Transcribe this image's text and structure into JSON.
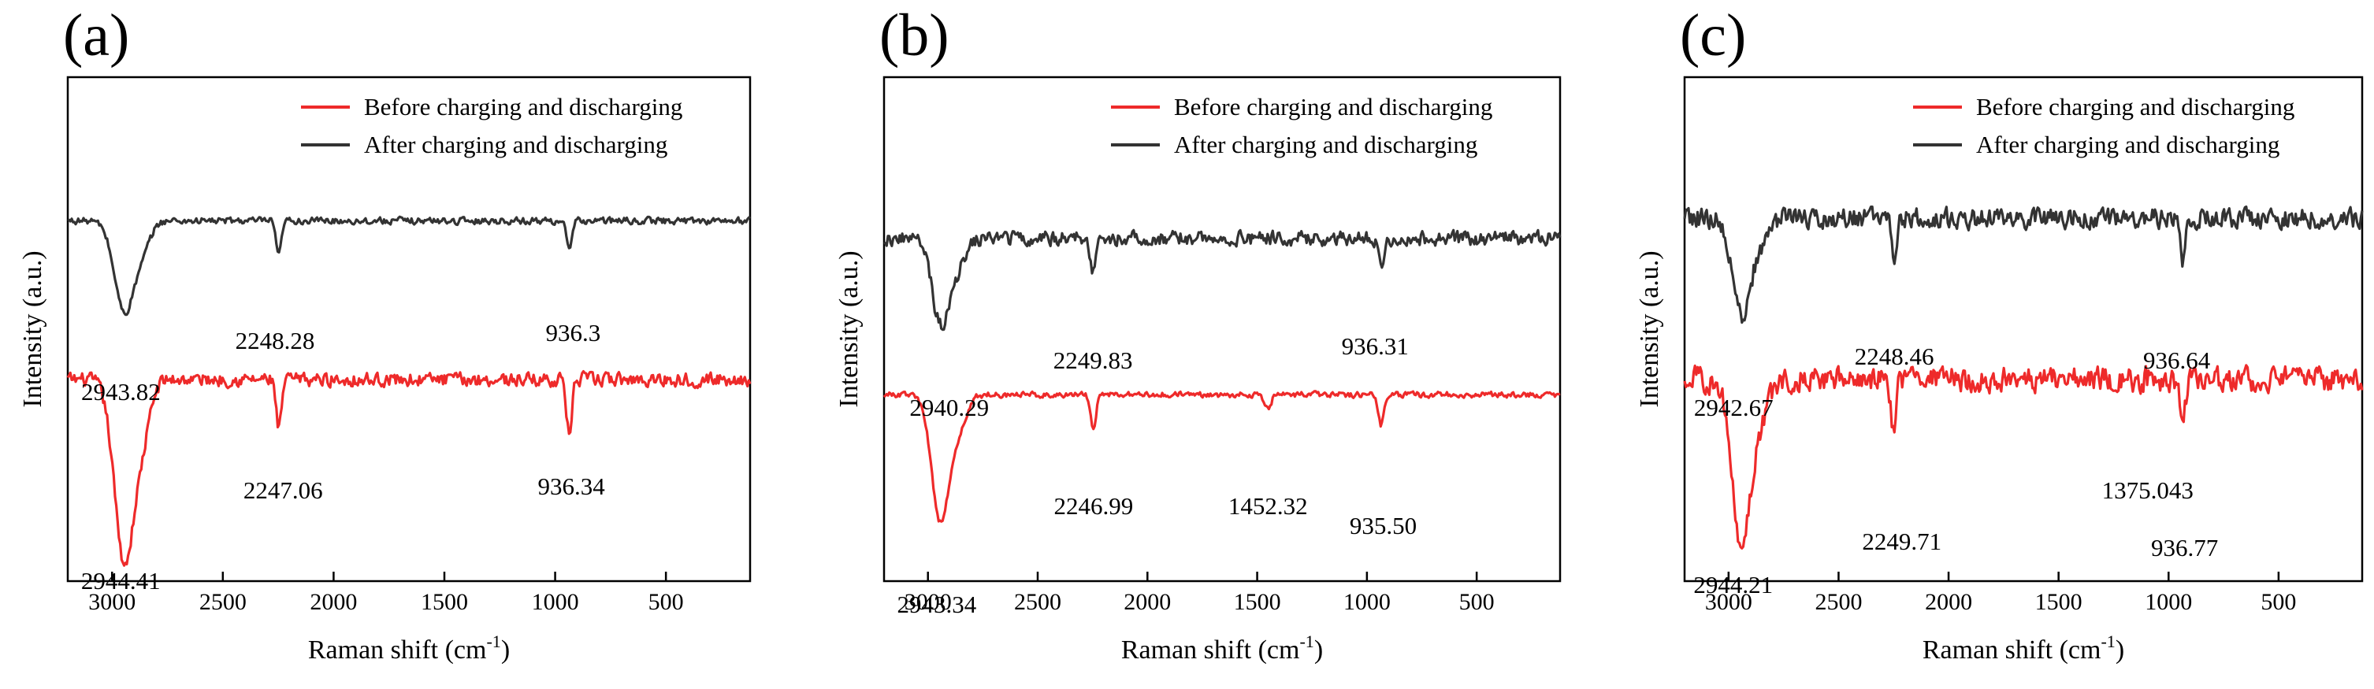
{
  "chart_data": [
    {
      "type": "line",
      "panel_label": "(a)",
      "xlabel": "Raman shift (cm",
      "xlabel_sup": "-1",
      "xlabel_end": ")",
      "ylabel": "Intensity (a.u.)",
      "xlim": [
        3200,
        120
      ],
      "x_ticks": [
        3000,
        2500,
        2000,
        1500,
        1000,
        500
      ],
      "y_ticks_shown": false,
      "legend_position": "top-right",
      "series": [
        {
          "name": "Before charging and discharging",
          "color": "#ee2a2a",
          "offset": 0.0,
          "baseline": 0.4,
          "peaks": [
            [
              2944.41,
              0.36,
              45
            ],
            [
              2247.06,
              0.1,
              12
            ],
            [
              936.34,
              0.11,
              12
            ]
          ],
          "noise": 0.012,
          "annotations": [
            {
              "text": "2944.41",
              "x": 2944.41
            },
            {
              "text": "2247.06",
              "x": 2247.06
            },
            {
              "text": "936.34",
              "x": 936.34
            }
          ]
        },
        {
          "name": "After charging and discharging",
          "color": "#333333",
          "offset": 0.0,
          "baseline": 0.715,
          "peaks": [
            [
              2943.82,
              0.18,
              45
            ],
            [
              2248.28,
              0.07,
              12
            ],
            [
              936.3,
              0.06,
              12
            ]
          ],
          "noise": 0.006,
          "annotations": [
            {
              "text": "2943.82",
              "x": 2943.82
            },
            {
              "text": "2248.28",
              "x": 2248.28
            },
            {
              "text": "936.3",
              "x": 936.3
            }
          ]
        }
      ]
    },
    {
      "type": "line",
      "panel_label": "(b)",
      "xlabel": "Raman shift (cm",
      "xlabel_sup": "-1",
      "xlabel_end": ")",
      "ylabel": "Intensity (a.u.)",
      "xlim": [
        3200,
        120
      ],
      "x_ticks": [
        3000,
        2500,
        2000,
        1500,
        1000,
        500
      ],
      "y_ticks_shown": false,
      "legend_position": "top-right",
      "series": [
        {
          "name": "Before charging and discharging",
          "color": "#ee2a2a",
          "offset": 0.0,
          "baseline": 0.37,
          "peaks": [
            [
              2943.34,
              0.25,
              40
            ],
            [
              2246.99,
              0.07,
              12
            ],
            [
              1452.32,
              0.03,
              15
            ],
            [
              935.5,
              0.06,
              12
            ]
          ],
          "noise": 0.005,
          "annotations": [
            {
              "text": "2943.34",
              "x": 2943.34
            },
            {
              "text": "2246.99",
              "x": 2246.99
            },
            {
              "text": "1452.32",
              "x": 1452.32
            },
            {
              "text": "935.50",
              "x": 935.5
            }
          ]
        },
        {
          "name": "After charging and discharging",
          "color": "#333333",
          "offset": 0.0,
          "baseline": 0.68,
          "peaks": [
            [
              2940.29,
              0.17,
              40
            ],
            [
              2249.83,
              0.06,
              12
            ],
            [
              936.31,
              0.05,
              12
            ]
          ],
          "noise": 0.013,
          "annotations": [
            {
              "text": "2940.29",
              "x": 2940.29
            },
            {
              "text": "2249.83",
              "x": 2249.83
            },
            {
              "text": "936.31",
              "x": 936.31
            }
          ]
        }
      ]
    },
    {
      "type": "line",
      "panel_label": "(c)",
      "xlabel": "Raman shift (cm",
      "xlabel_sup": "-1",
      "xlabel_end": ")",
      "ylabel": "Intensity (a.u.)",
      "xlim": [
        3200,
        120
      ],
      "x_ticks": [
        3000,
        2500,
        2000,
        1500,
        1000,
        500
      ],
      "y_ticks_shown": false,
      "legend_position": "top-right",
      "series": [
        {
          "name": "Before charging and discharging",
          "color": "#ee2a2a",
          "offset": 0.0,
          "baseline": 0.4,
          "peaks": [
            [
              2944.21,
              0.33,
              40
            ],
            [
              2249.71,
              0.1,
              12
            ],
            [
              936.77,
              0.09,
              12
            ]
          ],
          "noise": 0.022,
          "annotations": [
            {
              "text": "2944.21",
              "x": 2944.21
            },
            {
              "text": "2249.71",
              "x": 2249.71
            },
            {
              "text": "1375.043",
              "x": 1375.043
            },
            {
              "text": "936.77",
              "x": 936.77
            }
          ]
        },
        {
          "name": "After charging and discharging",
          "color": "#333333",
          "offset": 0.0,
          "baseline": 0.72,
          "peaks": [
            [
              2942.67,
              0.19,
              40
            ],
            [
              2248.46,
              0.08,
              12
            ],
            [
              936.64,
              0.08,
              12
            ]
          ],
          "noise": 0.018,
          "annotations": [
            {
              "text": "2942.67",
              "x": 2942.67
            },
            {
              "text": "2248.46",
              "x": 2248.46
            },
            {
              "text": "936.64",
              "x": 936.64
            }
          ]
        }
      ]
    }
  ]
}
